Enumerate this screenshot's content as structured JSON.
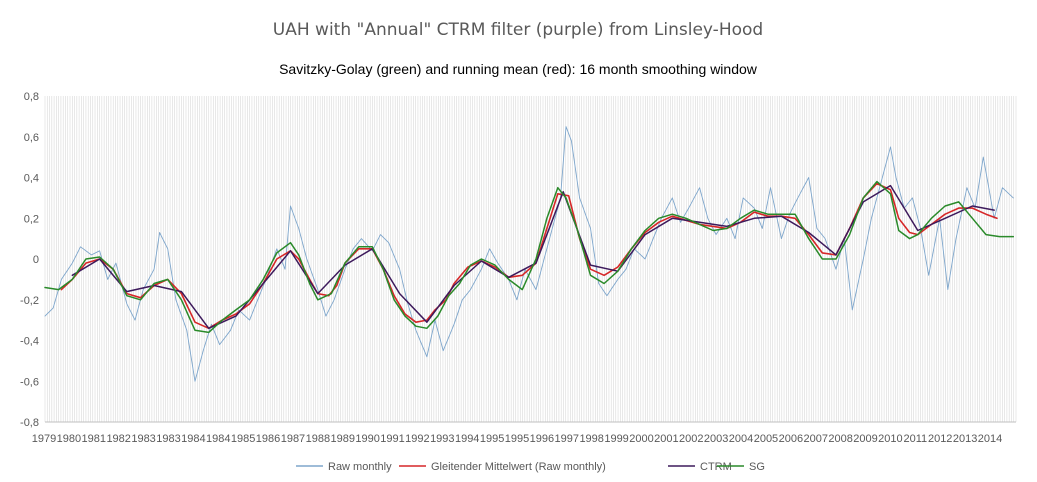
{
  "chart_data": {
    "type": "line",
    "title": "UAH with \"Annual\" CTRM filter (purple) from Linsley-Hood",
    "subtitle": "Savitzky-Golay (green) and running mean (red): 16 month smoothing window",
    "xlabel": "",
    "ylabel": "",
    "xlim": [
      1979.0,
      2014.6
    ],
    "ylim": [
      -0.8,
      0.8
    ],
    "yticks": [
      -0.8,
      -0.6,
      -0.4,
      -0.2,
      0,
      0.2,
      0.4,
      0.6,
      0.8
    ],
    "ytick_labels": [
      "-0,8",
      "-0,6",
      "-0,4",
      "-0,2",
      "0",
      "0,2",
      "0,4",
      "0,6",
      "0,8"
    ],
    "xtick_labels": [
      "1979",
      "1980",
      "1981",
      "1982",
      "1983",
      "1983",
      "1984",
      "1984",
      "1985",
      "1986",
      "1987",
      "1988",
      "1989",
      "1990",
      "1991",
      "1992",
      "1993",
      "1994",
      "1995",
      "1995",
      "1996",
      "1997",
      "1998",
      "1999",
      "2000",
      "2001",
      "2002",
      "2003",
      "2004",
      "2005",
      "2006",
      "2007",
      "2008",
      "2009",
      "2010",
      "2011",
      "2012",
      "2013",
      "2014"
    ],
    "grid": "vertical monthly lines",
    "legend_position": "bottom",
    "series": [
      {
        "name": "Raw monthly",
        "color": "#7ea6cc",
        "x": [
          1979.0,
          1979.3,
          1979.6,
          1980.0,
          1980.3,
          1980.7,
          1981.0,
          1981.3,
          1981.6,
          1982.0,
          1982.3,
          1982.6,
          1983.0,
          1983.2,
          1983.5,
          1983.8,
          1984.2,
          1984.5,
          1984.8,
          1985.1,
          1985.4,
          1985.8,
          1986.1,
          1986.5,
          1986.8,
          1987.1,
          1987.5,
          1987.8,
          1988.0,
          1988.3,
          1988.6,
          1989.0,
          1989.3,
          1989.6,
          1990.0,
          1990.3,
          1990.6,
          1991.0,
          1991.3,
          1991.6,
          1992.0,
          1992.3,
          1992.6,
          1993.0,
          1993.3,
          1993.6,
          1994.0,
          1994.3,
          1994.6,
          1995.0,
          1995.3,
          1995.6,
          1996.0,
          1996.3,
          1996.6,
          1997.0,
          1997.3,
          1997.6,
          1997.9,
          1998.1,
          1998.3,
          1998.6,
          1999.0,
          1999.3,
          1999.6,
          2000.0,
          2000.3,
          2000.6,
          2001.0,
          2001.3,
          2001.6,
          2002.0,
          2002.3,
          2002.6,
          2003.0,
          2003.3,
          2003.6,
          2004.0,
          2004.3,
          2004.6,
          2005.0,
          2005.3,
          2005.6,
          2006.0,
          2006.3,
          2006.6,
          2007.0,
          2007.3,
          2007.6,
          2008.0,
          2008.3,
          2008.6,
          2009.0,
          2009.3,
          2009.6,
          2010.0,
          2010.2,
          2010.5,
          2010.8,
          2011.1,
          2011.4,
          2011.8,
          2012.1,
          2012.4,
          2012.8,
          2013.1,
          2013.4,
          2013.8,
          2014.1,
          2014.5
        ],
        "values": [
          -0.28,
          -0.24,
          -0.1,
          -0.02,
          0.06,
          0.02,
          0.04,
          -0.1,
          -0.02,
          -0.22,
          -0.3,
          -0.15,
          -0.05,
          0.13,
          0.05,
          -0.2,
          -0.35,
          -0.6,
          -0.45,
          -0.32,
          -0.42,
          -0.35,
          -0.25,
          -0.3,
          -0.2,
          -0.1,
          0.05,
          -0.05,
          0.26,
          0.15,
          0.0,
          -0.15,
          -0.28,
          -0.2,
          -0.05,
          0.05,
          0.1,
          0.04,
          0.12,
          0.08,
          -0.05,
          -0.22,
          -0.35,
          -0.48,
          -0.3,
          -0.45,
          -0.32,
          -0.2,
          -0.15,
          -0.05,
          0.05,
          -0.02,
          -0.1,
          -0.2,
          -0.05,
          -0.15,
          0.0,
          0.15,
          0.3,
          0.65,
          0.58,
          0.3,
          0.15,
          -0.12,
          -0.18,
          -0.1,
          -0.05,
          0.05,
          0.0,
          0.1,
          0.2,
          0.3,
          0.18,
          0.25,
          0.35,
          0.2,
          0.12,
          0.2,
          0.1,
          0.3,
          0.25,
          0.15,
          0.35,
          0.1,
          0.22,
          0.3,
          0.4,
          0.15,
          0.1,
          -0.05,
          0.1,
          -0.25,
          0.0,
          0.2,
          0.35,
          0.55,
          0.4,
          0.25,
          0.3,
          0.15,
          -0.08,
          0.2,
          -0.15,
          0.1,
          0.35,
          0.25,
          0.5,
          0.2,
          0.35,
          0.3
        ]
      },
      {
        "name": "Gleitender Mittelwert (Raw monthly)",
        "color": "#d62728",
        "x": [
          1979.6,
          1980.0,
          1980.5,
          1981.0,
          1981.5,
          1982.0,
          1982.5,
          1983.0,
          1983.5,
          1984.0,
          1984.5,
          1985.0,
          1985.5,
          1986.0,
          1986.5,
          1987.0,
          1987.5,
          1988.0,
          1988.3,
          1988.7,
          1989.0,
          1989.4,
          1989.7,
          1990.0,
          1990.5,
          1991.0,
          1991.4,
          1991.8,
          1992.2,
          1992.6,
          1993.0,
          1993.3,
          1993.7,
          1994.0,
          1994.5,
          1995.0,
          1995.5,
          1996.0,
          1996.5,
          1997.0,
          1997.4,
          1997.8,
          1998.2,
          1998.6,
          1999.0,
          1999.5,
          2000.0,
          2000.5,
          2001.0,
          2001.5,
          2002.0,
          2002.5,
          2003.0,
          2003.5,
          2004.0,
          2004.5,
          2005.0,
          2005.5,
          2006.0,
          2006.5,
          2007.0,
          2007.5,
          2008.0,
          2008.5,
          2009.0,
          2009.5,
          2010.0,
          2010.3,
          2010.7,
          2011.0,
          2011.5,
          2012.0,
          2012.5,
          2013.0,
          2013.5,
          2013.9
        ],
        "values": [
          -0.15,
          -0.1,
          -0.02,
          0.0,
          -0.05,
          -0.17,
          -0.19,
          -0.13,
          -0.1,
          -0.17,
          -0.31,
          -0.34,
          -0.3,
          -0.27,
          -0.22,
          -0.12,
          0.0,
          0.04,
          0.0,
          -0.1,
          -0.17,
          -0.18,
          -0.13,
          -0.02,
          0.05,
          0.05,
          -0.05,
          -0.18,
          -0.27,
          -0.31,
          -0.3,
          -0.25,
          -0.2,
          -0.12,
          -0.04,
          -0.01,
          -0.04,
          -0.09,
          -0.08,
          -0.02,
          0.15,
          0.32,
          0.31,
          0.1,
          -0.05,
          -0.08,
          -0.04,
          0.05,
          0.13,
          0.18,
          0.21,
          0.19,
          0.17,
          0.16,
          0.15,
          0.18,
          0.23,
          0.21,
          0.21,
          0.2,
          0.12,
          0.03,
          0.02,
          0.15,
          0.3,
          0.37,
          0.34,
          0.2,
          0.13,
          0.12,
          0.17,
          0.22,
          0.25,
          0.25,
          0.22,
          0.2
        ],
        "values_note": "approximate"
      },
      {
        "name": "CTRM",
        "color": "#3d1a5c",
        "x": [
          1980.0,
          1981.0,
          1982.0,
          1983.0,
          1984.0,
          1985.0,
          1986.0,
          1987.0,
          1988.0,
          1989.0,
          1990.0,
          1991.0,
          1992.0,
          1993.0,
          1994.0,
          1995.0,
          1996.0,
          1997.0,
          1998.0,
          1999.0,
          2000.0,
          2001.0,
          2002.0,
          2003.0,
          2004.0,
          2005.0,
          2006.0,
          2007.0,
          2008.0,
          2009.0,
          2010.0,
          2011.0,
          2012.0,
          2013.0,
          2013.8
        ],
        "values": [
          -0.08,
          0.0,
          -0.16,
          -0.13,
          -0.16,
          -0.34,
          -0.28,
          -0.12,
          0.04,
          -0.17,
          -0.03,
          0.05,
          -0.17,
          -0.31,
          -0.13,
          -0.01,
          -0.09,
          -0.02,
          0.33,
          -0.03,
          -0.06,
          0.12,
          0.2,
          0.18,
          0.16,
          0.2,
          0.21,
          0.13,
          0.02,
          0.28,
          0.36,
          0.14,
          0.2,
          0.26,
          0.24
        ]
      },
      {
        "name": "SG",
        "color": "#2a8a2a",
        "x": [
          1979.0,
          1979.5,
          1980.0,
          1980.5,
          1981.0,
          1981.5,
          1982.0,
          1982.5,
          1983.0,
          1983.5,
          1984.0,
          1984.5,
          1985.0,
          1985.5,
          1986.0,
          1986.5,
          1987.0,
          1987.5,
          1988.0,
          1988.3,
          1988.7,
          1989.0,
          1989.5,
          1990.0,
          1990.5,
          1991.0,
          1991.4,
          1991.8,
          1992.2,
          1992.6,
          1993.0,
          1993.4,
          1993.8,
          1994.2,
          1994.6,
          1995.0,
          1995.5,
          1996.0,
          1996.5,
          1997.0,
          1997.4,
          1997.8,
          1998.1,
          1998.5,
          1999.0,
          1999.5,
          2000.0,
          2000.5,
          2001.0,
          2001.5,
          2002.0,
          2002.5,
          2003.0,
          2003.5,
          2004.0,
          2004.5,
          2005.0,
          2005.5,
          2006.0,
          2006.5,
          2007.0,
          2007.5,
          2008.0,
          2008.5,
          2009.0,
          2009.5,
          2010.0,
          2010.3,
          2010.7,
          2011.0,
          2011.5,
          2012.0,
          2012.5,
          2013.0,
          2013.5,
          2014.0,
          2014.5
        ],
        "values": [
          -0.14,
          -0.15,
          -0.1,
          0.0,
          0.01,
          -0.05,
          -0.18,
          -0.2,
          -0.12,
          -0.1,
          -0.2,
          -0.35,
          -0.36,
          -0.3,
          -0.25,
          -0.2,
          -0.1,
          0.03,
          0.08,
          0.02,
          -0.12,
          -0.2,
          -0.17,
          -0.02,
          0.06,
          0.06,
          -0.05,
          -0.2,
          -0.28,
          -0.33,
          -0.34,
          -0.28,
          -0.18,
          -0.12,
          -0.03,
          0.0,
          -0.03,
          -0.1,
          -0.15,
          0.0,
          0.2,
          0.35,
          0.3,
          0.15,
          -0.08,
          -0.12,
          -0.06,
          0.05,
          0.14,
          0.2,
          0.22,
          0.2,
          0.17,
          0.14,
          0.15,
          0.2,
          0.24,
          0.22,
          0.22,
          0.22,
          0.1,
          0.0,
          0.0,
          0.12,
          0.3,
          0.38,
          0.32,
          0.14,
          0.1,
          0.12,
          0.2,
          0.26,
          0.28,
          0.2,
          0.12,
          0.11,
          0.11
        ]
      }
    ]
  }
}
